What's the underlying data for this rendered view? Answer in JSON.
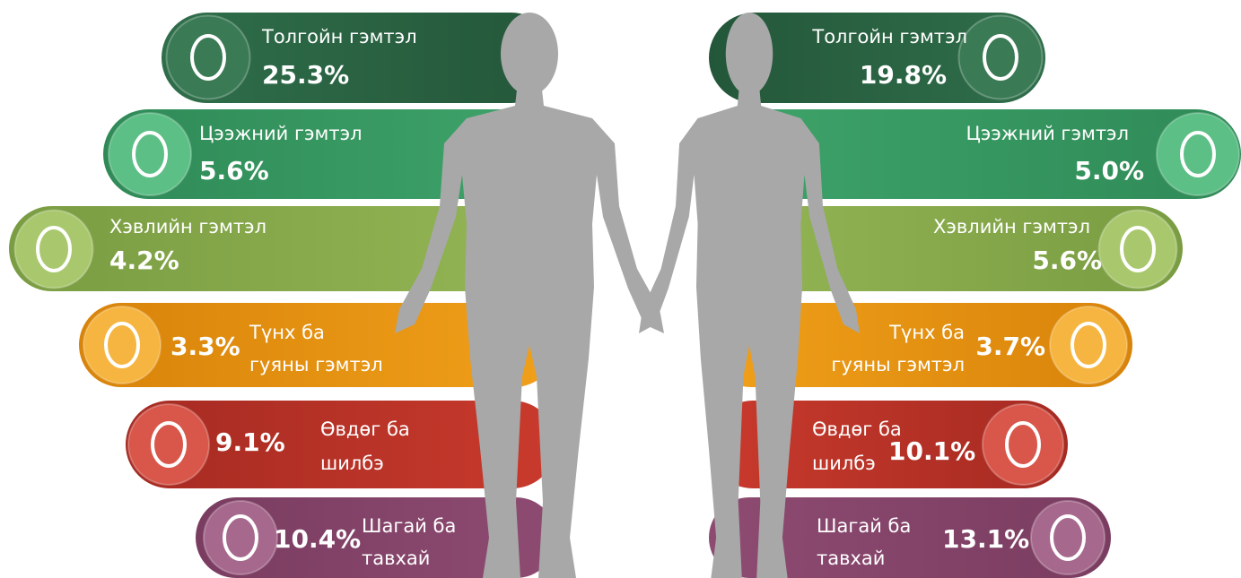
{
  "left": [
    {
      "label": [
        "Толгойн гэмтэл"
      ],
      "value": "25.3%"
    },
    {
      "label": [
        "Цээжний гэмтэл"
      ],
      "value": "5.6%"
    },
    {
      "label": [
        "Хэвлийн гэмтэл"
      ],
      "value": "4.2%"
    },
    {
      "label": [
        "Түнх ба",
        "гуяны гэмтэл"
      ],
      "value": "3.3%"
    },
    {
      "label": [
        "Өвдөг ба",
        "шилбэ"
      ],
      "value": "9.1%"
    },
    {
      "label": [
        "Шагай ба",
        "тавхай"
      ],
      "value": "10.4%"
    }
  ],
  "right": [
    {
      "label": [
        "Толгойн гэмтэл"
      ],
      "value": "19.8%"
    },
    {
      "label": [
        "Цээжний гэмтэл"
      ],
      "value": "5.0%"
    },
    {
      "label": [
        "Хэвлийн гэмтэл"
      ],
      "value": "5.6%"
    },
    {
      "label": [
        "Түнх ба",
        "гуяны гэмтэл"
      ],
      "value": "3.7%"
    },
    {
      "label": [
        "Өвдөг ба",
        "шилбэ"
      ],
      "value": "10.1%"
    },
    {
      "label": [
        "Шагай ба",
        "тавхай"
      ],
      "value": "13.1%"
    }
  ]
}
